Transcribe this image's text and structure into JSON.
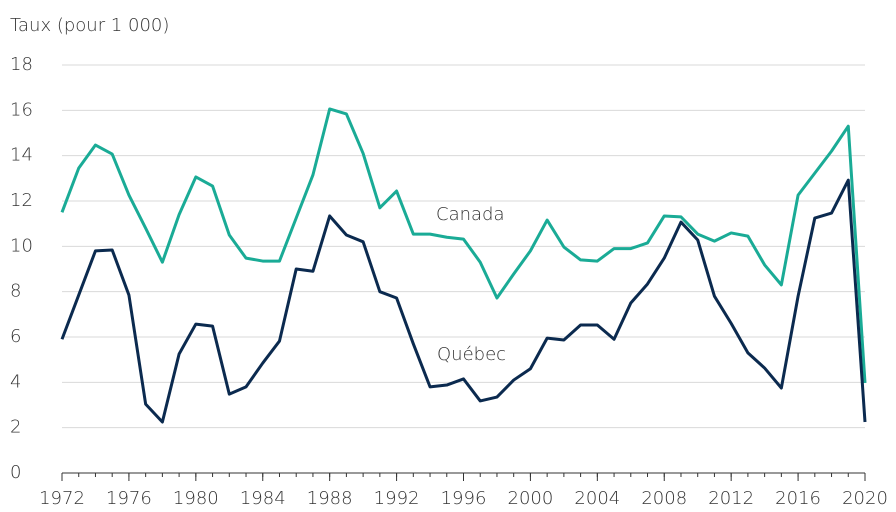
{
  "chart_data": {
    "type": "line",
    "y_axis_label": "Taux (pour 1 000)",
    "x": [
      1972,
      1973,
      1974,
      1975,
      1976,
      1977,
      1978,
      1979,
      1980,
      1981,
      1982,
      1983,
      1984,
      1985,
      1986,
      1987,
      1988,
      1989,
      1990,
      1991,
      1992,
      1993,
      1994,
      1995,
      1996,
      1997,
      1998,
      1999,
      2000,
      2001,
      2002,
      2003,
      2004,
      2005,
      2006,
      2007,
      2008,
      2009,
      2010,
      2011,
      2012,
      2013,
      2014,
      2015,
      2016,
      2017,
      2018,
      2019,
      2020
    ],
    "series": [
      {
        "name": "Canada",
        "color": "#1aab96",
        "values": [
          11.5,
          13.45,
          14.47,
          14.07,
          12.26,
          10.8,
          9.3,
          11.4,
          13.06,
          12.66,
          10.5,
          9.48,
          9.35,
          9.35,
          11.25,
          13.15,
          16.06,
          15.84,
          14.1,
          11.7,
          12.44,
          10.54,
          10.54,
          10.4,
          10.32,
          9.3,
          7.72,
          8.78,
          9.8,
          11.16,
          9.97,
          9.4,
          9.35,
          9.9,
          9.9,
          10.15,
          11.34,
          11.3,
          10.54,
          10.23,
          10.59,
          10.45,
          9.18,
          8.3,
          12.26,
          13.23,
          14.2,
          15.3,
          3.97
        ]
      },
      {
        "name": "Québec",
        "color": "#0b2a4f",
        "values": [
          5.9,
          7.85,
          9.8,
          9.84,
          7.85,
          3.04,
          2.25,
          5.25,
          6.57,
          6.48,
          3.48,
          3.8,
          4.85,
          5.82,
          9.0,
          8.9,
          11.34,
          10.5,
          10.2,
          8.0,
          7.72,
          5.7,
          3.8,
          3.88,
          4.15,
          3.18,
          3.35,
          4.1,
          4.6,
          5.95,
          5.87,
          6.53,
          6.53,
          5.9,
          7.5,
          8.34,
          9.48,
          11.07,
          10.28,
          7.8,
          6.6,
          5.3,
          4.63,
          3.75,
          7.8,
          11.25,
          11.47,
          12.92,
          2.25
        ]
      }
    ],
    "xlim": [
      1972,
      2020
    ],
    "xticks": [
      1972,
      1976,
      1980,
      1984,
      1988,
      1992,
      1996,
      2000,
      2004,
      2008,
      2012,
      2016,
      2020
    ],
    "ylim": [
      0,
      18
    ],
    "yticks": [
      0,
      2,
      4,
      6,
      8,
      10,
      12,
      14,
      16,
      18
    ],
    "grid": true
  }
}
